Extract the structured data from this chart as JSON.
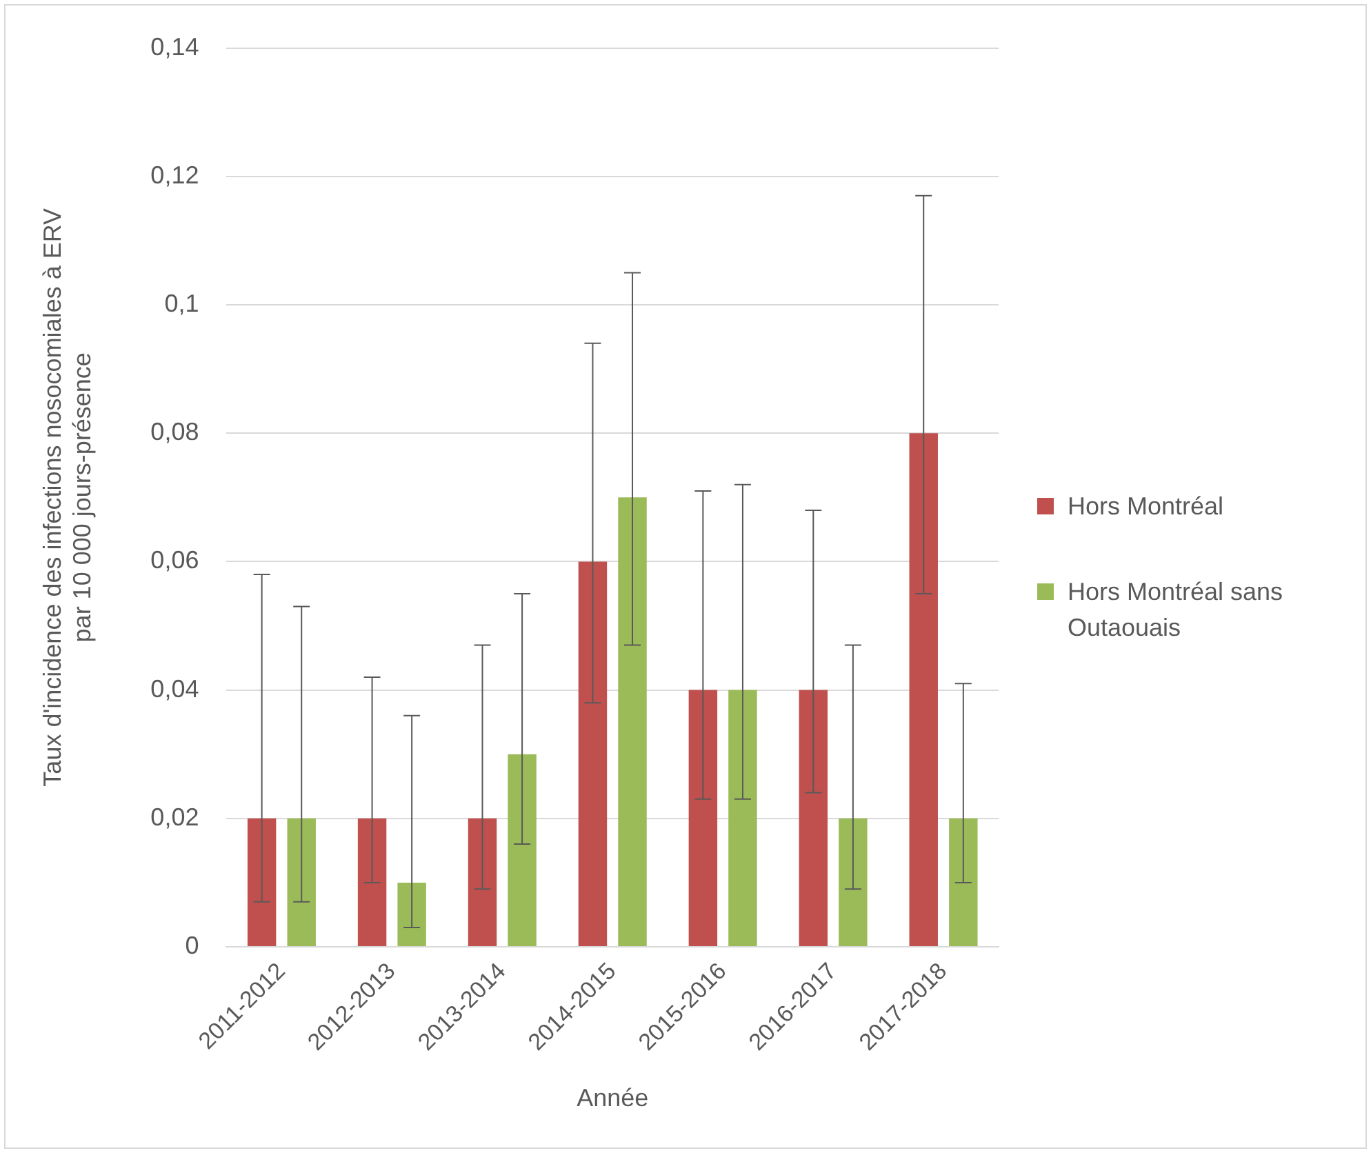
{
  "chart_data": {
    "type": "bar",
    "categories": [
      "2011-2012",
      "2012-2013",
      "2013-2014",
      "2014-2015",
      "2015-2016",
      "2016-2017",
      "2017-2018"
    ],
    "series": [
      {
        "name": "Hors Montréal",
        "color": "#c0504d",
        "values": [
          0.02,
          0.02,
          0.02,
          0.06,
          0.04,
          0.04,
          0.08
        ],
        "errors": [
          [
            0.007,
            0.058
          ],
          [
            0.01,
            0.042
          ],
          [
            0.009,
            0.047
          ],
          [
            0.038,
            0.094
          ],
          [
            0.023,
            0.071
          ],
          [
            0.024,
            0.068
          ],
          [
            0.055,
            0.117
          ]
        ]
      },
      {
        "name": "Hors Montréal sans Outaouais",
        "color": "#9bbb59",
        "values": [
          0.02,
          0.01,
          0.03,
          0.07,
          0.04,
          0.02,
          0.02
        ],
        "errors": [
          [
            0.007,
            0.053
          ],
          [
            0.003,
            0.036
          ],
          [
            0.016,
            0.055
          ],
          [
            0.047,
            0.105
          ],
          [
            0.023,
            0.072
          ],
          [
            0.009,
            0.047
          ],
          [
            0.01,
            0.041
          ]
        ]
      }
    ],
    "xlabel": "Année",
    "ylabel": "Taux d'incidence des infections nosocomiales à ERV\npar 10 000 jours-présence",
    "ylim": [
      0,
      0.14
    ],
    "yticks": [
      0,
      {
        "value": 0.02,
        "label": "0,02"
      },
      {
        "value": 0.04,
        "label": "0,04"
      },
      {
        "value": 0.06,
        "label": "0,06"
      },
      {
        "value": 0.08,
        "label": "0,08"
      },
      {
        "value": 0.1,
        "label": "0,1"
      },
      {
        "value": 0.12,
        "label": "0,12"
      },
      {
        "value": 0.14,
        "label": "0,14"
      }
    ],
    "grid": "y",
    "legend": "right"
  }
}
